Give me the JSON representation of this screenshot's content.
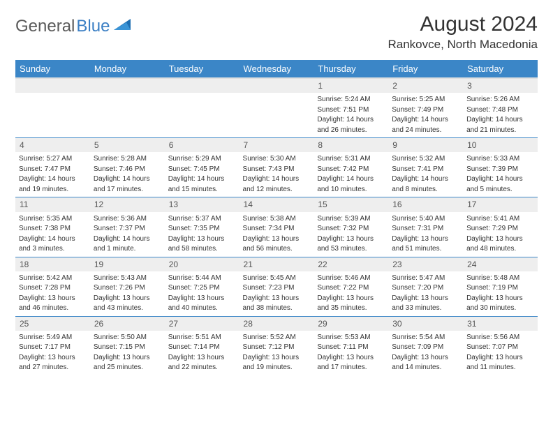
{
  "brand": {
    "part1": "General",
    "part2": "Blue"
  },
  "title": "August 2024",
  "location": "Rankovce, North Macedonia",
  "day_headers": [
    "Sunday",
    "Monday",
    "Tuesday",
    "Wednesday",
    "Thursday",
    "Friday",
    "Saturday"
  ],
  "colors": {
    "header_bg": "#3b86c7",
    "header_fg": "#ffffff",
    "daynum_bg": "#eeeeee",
    "row_border": "#3b86c7",
    "text": "#333333",
    "logo_gray": "#5a5a5a",
    "logo_blue": "#3b7fc4"
  },
  "weeks": [
    [
      null,
      null,
      null,
      null,
      {
        "n": "1",
        "sr": "Sunrise: 5:24 AM",
        "ss": "Sunset: 7:51 PM",
        "d1": "Daylight: 14 hours",
        "d2": "and 26 minutes."
      },
      {
        "n": "2",
        "sr": "Sunrise: 5:25 AM",
        "ss": "Sunset: 7:49 PM",
        "d1": "Daylight: 14 hours",
        "d2": "and 24 minutes."
      },
      {
        "n": "3",
        "sr": "Sunrise: 5:26 AM",
        "ss": "Sunset: 7:48 PM",
        "d1": "Daylight: 14 hours",
        "d2": "and 21 minutes."
      }
    ],
    [
      {
        "n": "4",
        "sr": "Sunrise: 5:27 AM",
        "ss": "Sunset: 7:47 PM",
        "d1": "Daylight: 14 hours",
        "d2": "and 19 minutes."
      },
      {
        "n": "5",
        "sr": "Sunrise: 5:28 AM",
        "ss": "Sunset: 7:46 PM",
        "d1": "Daylight: 14 hours",
        "d2": "and 17 minutes."
      },
      {
        "n": "6",
        "sr": "Sunrise: 5:29 AM",
        "ss": "Sunset: 7:45 PM",
        "d1": "Daylight: 14 hours",
        "d2": "and 15 minutes."
      },
      {
        "n": "7",
        "sr": "Sunrise: 5:30 AM",
        "ss": "Sunset: 7:43 PM",
        "d1": "Daylight: 14 hours",
        "d2": "and 12 minutes."
      },
      {
        "n": "8",
        "sr": "Sunrise: 5:31 AM",
        "ss": "Sunset: 7:42 PM",
        "d1": "Daylight: 14 hours",
        "d2": "and 10 minutes."
      },
      {
        "n": "9",
        "sr": "Sunrise: 5:32 AM",
        "ss": "Sunset: 7:41 PM",
        "d1": "Daylight: 14 hours",
        "d2": "and 8 minutes."
      },
      {
        "n": "10",
        "sr": "Sunrise: 5:33 AM",
        "ss": "Sunset: 7:39 PM",
        "d1": "Daylight: 14 hours",
        "d2": "and 5 minutes."
      }
    ],
    [
      {
        "n": "11",
        "sr": "Sunrise: 5:35 AM",
        "ss": "Sunset: 7:38 PM",
        "d1": "Daylight: 14 hours",
        "d2": "and 3 minutes."
      },
      {
        "n": "12",
        "sr": "Sunrise: 5:36 AM",
        "ss": "Sunset: 7:37 PM",
        "d1": "Daylight: 14 hours",
        "d2": "and 1 minute."
      },
      {
        "n": "13",
        "sr": "Sunrise: 5:37 AM",
        "ss": "Sunset: 7:35 PM",
        "d1": "Daylight: 13 hours",
        "d2": "and 58 minutes."
      },
      {
        "n": "14",
        "sr": "Sunrise: 5:38 AM",
        "ss": "Sunset: 7:34 PM",
        "d1": "Daylight: 13 hours",
        "d2": "and 56 minutes."
      },
      {
        "n": "15",
        "sr": "Sunrise: 5:39 AM",
        "ss": "Sunset: 7:32 PM",
        "d1": "Daylight: 13 hours",
        "d2": "and 53 minutes."
      },
      {
        "n": "16",
        "sr": "Sunrise: 5:40 AM",
        "ss": "Sunset: 7:31 PM",
        "d1": "Daylight: 13 hours",
        "d2": "and 51 minutes."
      },
      {
        "n": "17",
        "sr": "Sunrise: 5:41 AM",
        "ss": "Sunset: 7:29 PM",
        "d1": "Daylight: 13 hours",
        "d2": "and 48 minutes."
      }
    ],
    [
      {
        "n": "18",
        "sr": "Sunrise: 5:42 AM",
        "ss": "Sunset: 7:28 PM",
        "d1": "Daylight: 13 hours",
        "d2": "and 46 minutes."
      },
      {
        "n": "19",
        "sr": "Sunrise: 5:43 AM",
        "ss": "Sunset: 7:26 PM",
        "d1": "Daylight: 13 hours",
        "d2": "and 43 minutes."
      },
      {
        "n": "20",
        "sr": "Sunrise: 5:44 AM",
        "ss": "Sunset: 7:25 PM",
        "d1": "Daylight: 13 hours",
        "d2": "and 40 minutes."
      },
      {
        "n": "21",
        "sr": "Sunrise: 5:45 AM",
        "ss": "Sunset: 7:23 PM",
        "d1": "Daylight: 13 hours",
        "d2": "and 38 minutes."
      },
      {
        "n": "22",
        "sr": "Sunrise: 5:46 AM",
        "ss": "Sunset: 7:22 PM",
        "d1": "Daylight: 13 hours",
        "d2": "and 35 minutes."
      },
      {
        "n": "23",
        "sr": "Sunrise: 5:47 AM",
        "ss": "Sunset: 7:20 PM",
        "d1": "Daylight: 13 hours",
        "d2": "and 33 minutes."
      },
      {
        "n": "24",
        "sr": "Sunrise: 5:48 AM",
        "ss": "Sunset: 7:19 PM",
        "d1": "Daylight: 13 hours",
        "d2": "and 30 minutes."
      }
    ],
    [
      {
        "n": "25",
        "sr": "Sunrise: 5:49 AM",
        "ss": "Sunset: 7:17 PM",
        "d1": "Daylight: 13 hours",
        "d2": "and 27 minutes."
      },
      {
        "n": "26",
        "sr": "Sunrise: 5:50 AM",
        "ss": "Sunset: 7:15 PM",
        "d1": "Daylight: 13 hours",
        "d2": "and 25 minutes."
      },
      {
        "n": "27",
        "sr": "Sunrise: 5:51 AM",
        "ss": "Sunset: 7:14 PM",
        "d1": "Daylight: 13 hours",
        "d2": "and 22 minutes."
      },
      {
        "n": "28",
        "sr": "Sunrise: 5:52 AM",
        "ss": "Sunset: 7:12 PM",
        "d1": "Daylight: 13 hours",
        "d2": "and 19 minutes."
      },
      {
        "n": "29",
        "sr": "Sunrise: 5:53 AM",
        "ss": "Sunset: 7:11 PM",
        "d1": "Daylight: 13 hours",
        "d2": "and 17 minutes."
      },
      {
        "n": "30",
        "sr": "Sunrise: 5:54 AM",
        "ss": "Sunset: 7:09 PM",
        "d1": "Daylight: 13 hours",
        "d2": "and 14 minutes."
      },
      {
        "n": "31",
        "sr": "Sunrise: 5:56 AM",
        "ss": "Sunset: 7:07 PM",
        "d1": "Daylight: 13 hours",
        "d2": "and 11 minutes."
      }
    ]
  ]
}
